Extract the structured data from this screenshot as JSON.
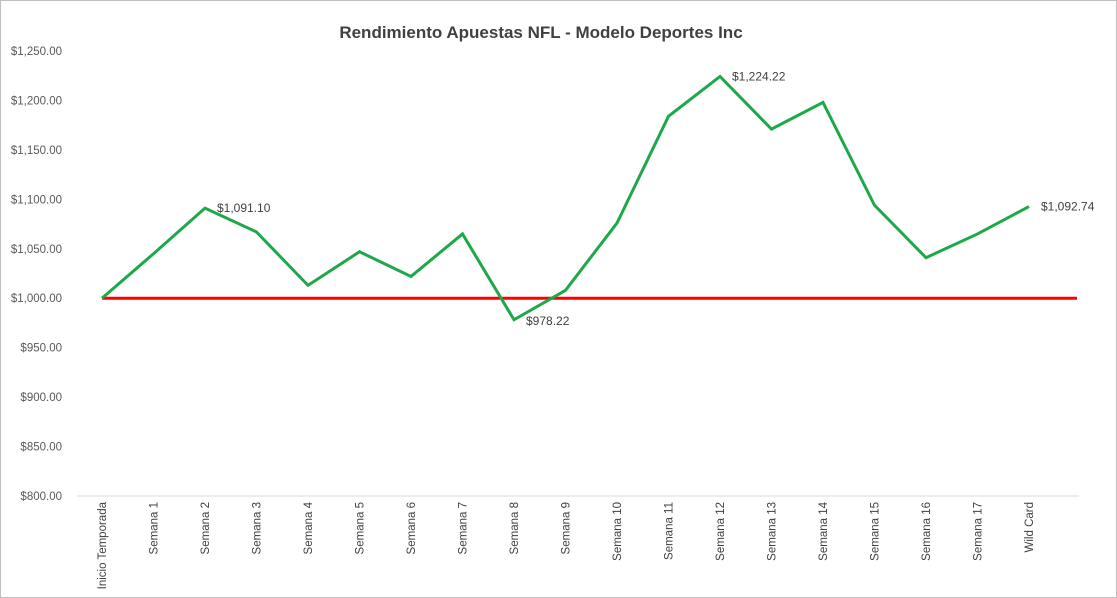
{
  "chart_data": {
    "type": "line",
    "title": "Rendimiento Apuestas NFL - Modelo Deportes Inc",
    "xlabel": "",
    "ylabel": "",
    "ylim": [
      800,
      1250
    ],
    "y_ticks": [
      "$800.00",
      "$850.00",
      "$900.00",
      "$950.00",
      "$1,000.00",
      "$1,050.00",
      "$1,100.00",
      "$1,150.00",
      "$1,200.00",
      "$1,250.00"
    ],
    "categories": [
      "Inicio Temporada",
      "Semana 1",
      "Semana 2",
      "Semana 3",
      "Semana 4",
      "Semana 5",
      "Semana 6",
      "Semana 7",
      "Semana 8",
      "Semana 9",
      "Semana 10",
      "Semana 11",
      "Semana 12",
      "Semana 13",
      "Semana 14",
      "Semana 15",
      "Semana 16",
      "Semana 17",
      "Wild Card"
    ],
    "series": [
      {
        "color": "#1ea84a",
        "values": [
          1000,
          1045,
          1091.1,
          1067,
          1013,
          1047,
          1022,
          1065,
          978.22,
          1008,
          1076,
          1184,
          1224.22,
          1171,
          1198,
          1094,
          1041,
          1065,
          1092.74
        ]
      }
    ],
    "baseline": {
      "value": 1000,
      "color": "#ff0000"
    },
    "data_labels": [
      {
        "index": 2,
        "text": "$1,091.10"
      },
      {
        "index": 8,
        "text": "$978.22"
      },
      {
        "index": 12,
        "text": "$1,224.22"
      },
      {
        "index": 18,
        "text": "$1,092.74"
      }
    ],
    "grid": false,
    "legend": "none"
  }
}
